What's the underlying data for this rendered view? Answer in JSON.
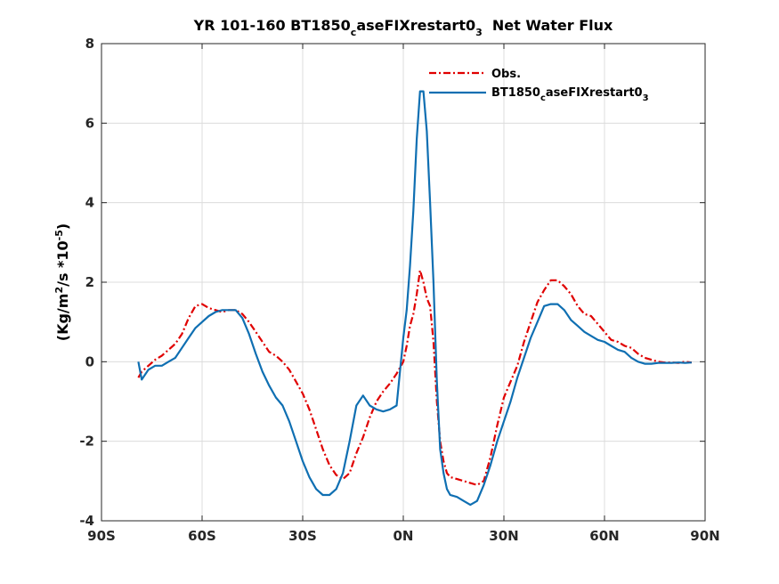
{
  "chart_data": {
    "type": "line",
    "title": {
      "main": "YR 101-160 BT1850",
      "sub1": "c",
      "mid": "aseFIXrestart0",
      "sub2": "3",
      "tail": "  Net Water Flux"
    },
    "xlabel": "",
    "ylabel": {
      "part1": "(Kg/m",
      "sup1": "2",
      "part2": "/s *10",
      "sup2": "-5",
      "part3": ")"
    },
    "xlim": [
      -90,
      90
    ],
    "ylim": [
      -4,
      8
    ],
    "xticks": [
      {
        "value": -90,
        "label": "90S"
      },
      {
        "value": -60,
        "label": "60S"
      },
      {
        "value": -30,
        "label": "30S"
      },
      {
        "value": 0,
        "label": "0N"
      },
      {
        "value": 30,
        "label": "30N"
      },
      {
        "value": 60,
        "label": "60N"
      },
      {
        "value": 90,
        "label": "90N"
      }
    ],
    "yticks": [
      {
        "value": -4,
        "label": "-4"
      },
      {
        "value": -2,
        "label": "-2"
      },
      {
        "value": 0,
        "label": "0"
      },
      {
        "value": 2,
        "label": "2"
      },
      {
        "value": 4,
        "label": "4"
      },
      {
        "value": 6,
        "label": "6"
      },
      {
        "value": 8,
        "label": "8"
      }
    ],
    "grid": true,
    "legend_position": "top-right",
    "series": [
      {
        "name": "Obs.",
        "color": "#e00000",
        "style": "dash-dot",
        "x": [
          -79,
          -78,
          -76,
          -74,
          -72,
          -70,
          -68,
          -66,
          -64,
          -62,
          -60,
          -58,
          -56,
          -54,
          -52,
          -50,
          -48,
          -46,
          -44,
          -42,
          -40,
          -38,
          -36,
          -34,
          -32,
          -30,
          -28,
          -26,
          -24,
          -22,
          -20,
          -18,
          -16,
          -14,
          -12,
          -10,
          -8,
          -6,
          -4,
          -2,
          0,
          1,
          2,
          3,
          4,
          5,
          6,
          7,
          8,
          9,
          10,
          11,
          12,
          13,
          14,
          16,
          18,
          20,
          22,
          24,
          26,
          28,
          30,
          32,
          34,
          36,
          38,
          40,
          42,
          44,
          46,
          48,
          50,
          52,
          54,
          56,
          58,
          60,
          62,
          64,
          66,
          68,
          70,
          72,
          74,
          76,
          78,
          80,
          82,
          84,
          86
        ],
        "y": [
          -0.4,
          -0.25,
          -0.1,
          0.05,
          0.15,
          0.3,
          0.45,
          0.7,
          1.1,
          1.4,
          1.45,
          1.35,
          1.3,
          1.25,
          1.3,
          1.3,
          1.2,
          1.0,
          0.75,
          0.5,
          0.25,
          0.15,
          0.0,
          -0.2,
          -0.5,
          -0.8,
          -1.2,
          -1.7,
          -2.2,
          -2.6,
          -2.85,
          -2.95,
          -2.8,
          -2.3,
          -1.9,
          -1.4,
          -1.0,
          -0.75,
          -0.55,
          -0.3,
          0.0,
          0.4,
          0.9,
          1.2,
          1.7,
          2.3,
          2.0,
          1.6,
          1.4,
          0.5,
          -1.0,
          -2.0,
          -2.5,
          -2.8,
          -2.9,
          -2.95,
          -3.0,
          -3.05,
          -3.1,
          -3.0,
          -2.4,
          -1.6,
          -0.9,
          -0.5,
          -0.1,
          0.5,
          1.0,
          1.5,
          1.8,
          2.05,
          2.05,
          1.9,
          1.7,
          1.4,
          1.2,
          1.15,
          0.95,
          0.75,
          0.55,
          0.5,
          0.4,
          0.35,
          0.2,
          0.1,
          0.05,
          0.0,
          -0.02,
          -0.02,
          -0.03,
          0.0,
          -0.02
        ]
      },
      {
        "name": "BT1850caseFIXrestart03",
        "color": "#0f6fb2",
        "style": "solid",
        "x": [
          -79,
          -78,
          -76,
          -74,
          -72,
          -70,
          -68,
          -66,
          -64,
          -62,
          -60,
          -58,
          -56,
          -54,
          -52,
          -50,
          -48,
          -46,
          -44,
          -42,
          -40,
          -38,
          -36,
          -34,
          -32,
          -30,
          -28,
          -26,
          -24,
          -22,
          -20,
          -18,
          -16,
          -14,
          -12,
          -10,
          -8,
          -6,
          -4,
          -2,
          0,
          1,
          2,
          3,
          4,
          5,
          6,
          7,
          8,
          9,
          10,
          11,
          12,
          13,
          14,
          16,
          18,
          20,
          22,
          24,
          26,
          28,
          30,
          32,
          34,
          36,
          38,
          40,
          42,
          44,
          46,
          48,
          50,
          52,
          54,
          56,
          58,
          60,
          62,
          64,
          66,
          68,
          70,
          72,
          74,
          76,
          78,
          80,
          82,
          84,
          86
        ],
        "y": [
          0.0,
          -0.45,
          -0.2,
          -0.1,
          -0.1,
          0.0,
          0.1,
          0.35,
          0.6,
          0.85,
          1.0,
          1.15,
          1.25,
          1.3,
          1.3,
          1.3,
          1.1,
          0.7,
          0.2,
          -0.25,
          -0.6,
          -0.9,
          -1.1,
          -1.5,
          -2.0,
          -2.5,
          -2.9,
          -3.2,
          -3.35,
          -3.35,
          -3.2,
          -2.8,
          -2.0,
          -1.1,
          -0.85,
          -1.1,
          -1.2,
          -1.25,
          -1.2,
          -1.1,
          0.6,
          1.3,
          2.4,
          3.8,
          5.6,
          6.8,
          6.8,
          5.8,
          4.0,
          2.0,
          -0.5,
          -2.2,
          -2.8,
          -3.2,
          -3.35,
          -3.4,
          -3.5,
          -3.6,
          -3.5,
          -3.1,
          -2.6,
          -2.0,
          -1.5,
          -1.0,
          -0.4,
          0.1,
          0.6,
          1.0,
          1.4,
          1.45,
          1.45,
          1.3,
          1.05,
          0.9,
          0.75,
          0.65,
          0.55,
          0.5,
          0.4,
          0.3,
          0.25,
          0.1,
          0.0,
          -0.05,
          -0.05,
          -0.03,
          -0.03,
          -0.03,
          -0.02,
          -0.03,
          -0.02
        ]
      }
    ],
    "legend": {
      "obs_label": "Obs.",
      "model_main": "BT1850",
      "model_sub1": "c",
      "model_mid": "aseFIXrestart0",
      "model_sub2": "3"
    }
  }
}
